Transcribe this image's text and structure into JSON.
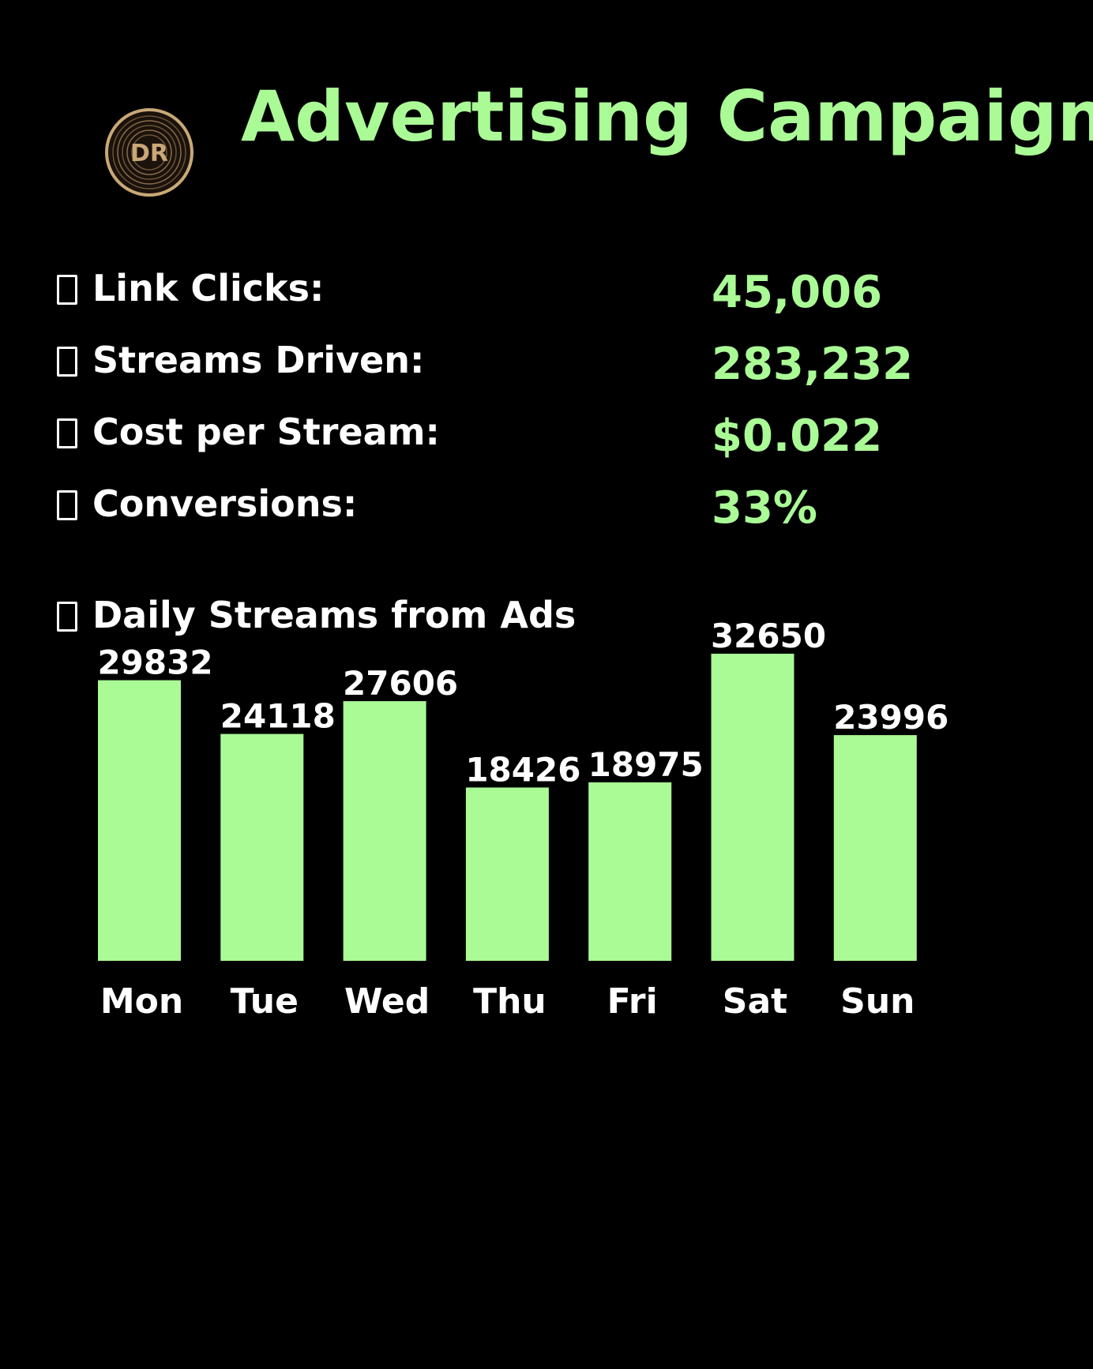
{
  "header": {
    "title": "Advertising Campaign",
    "logo_text": "DR"
  },
  "stats": [
    {
      "icon": "link-icon",
      "label": "Link Clicks:",
      "value": "45,006"
    },
    {
      "icon": "headphones-icon",
      "label": "Streams Driven:",
      "value": "283,232"
    },
    {
      "icon": "money-icon",
      "label": "Cost per Stream:",
      "value": "$0.022"
    },
    {
      "icon": "target-icon",
      "label": "Conversions:",
      "value": "33%"
    }
  ],
  "chart_heading": {
    "icon": "chart-icon",
    "label": "Daily Streams from Ads"
  },
  "colors": {
    "background": "#000000",
    "accent": "#aafa96",
    "text": "#ffffff",
    "logo_gold": "#c9a877"
  },
  "chart_data": {
    "type": "bar",
    "title": "Daily Streams from Ads",
    "categories": [
      "Mon",
      "Tue",
      "Wed",
      "Thu",
      "Fri",
      "Sat",
      "Sun"
    ],
    "values": [
      29832,
      24118,
      27606,
      18426,
      18975,
      32650,
      23996
    ],
    "data_labels": [
      "29832",
      "24118",
      "27606",
      "18426",
      "18975",
      "32650",
      "23996"
    ],
    "ylim": [
      0,
      32650
    ],
    "grid": false,
    "legend": "none",
    "bar_color": "#aafa96"
  }
}
